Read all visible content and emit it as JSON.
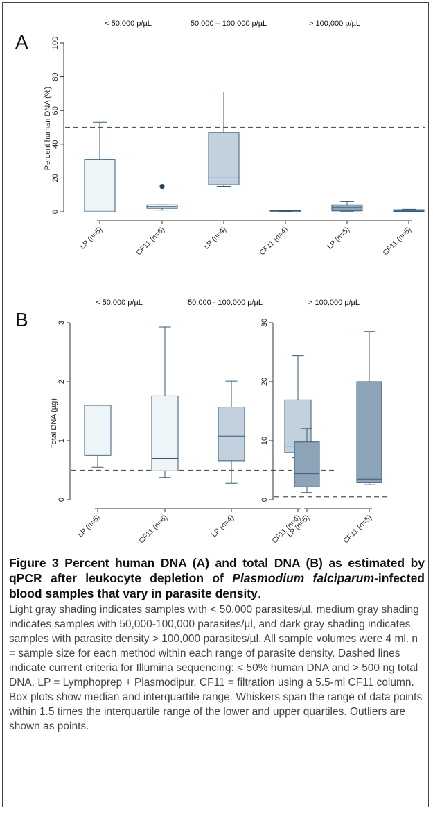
{
  "chart_data": [
    {
      "panel": "A",
      "type": "box",
      "ylabel": "Percent human DNA (%)",
      "ylim": [
        0,
        100
      ],
      "yticks": [
        "0",
        "20",
        "40",
        "60",
        "80",
        "100"
      ],
      "threshold": 50,
      "groups": [
        "< 50,000 p/µL",
        "50,000 – 100,000 p/µL",
        "> 100,000 p/µL"
      ],
      "categories": [
        "LP (n=5)",
        "CF11 (n=6)",
        "LP (n=4)",
        "CF11 (n=4)",
        "LP (n=5)",
        "CF11 (n=5)"
      ],
      "boxes": [
        {
          "min": 0,
          "q1": 0,
          "median": 1,
          "q3": 31,
          "max": 53,
          "shade": "light"
        },
        {
          "min": 1,
          "q1": 2,
          "median": 3,
          "q3": 4,
          "max": 4,
          "outliers": [
            15
          ],
          "shade": "light"
        },
        {
          "min": 15,
          "q1": 16,
          "median": 20,
          "q3": 47,
          "max": 71,
          "shade": "medium"
        },
        {
          "min": 0,
          "q1": 0.3,
          "median": 0.6,
          "q3": 1,
          "max": 1,
          "shade": "medium"
        },
        {
          "min": 0,
          "q1": 0.5,
          "median": 2.5,
          "q3": 4,
          "max": 6,
          "shade": "dark"
        },
        {
          "min": 0,
          "q1": 0.2,
          "median": 0.5,
          "q3": 1.2,
          "max": 1.5,
          "shade": "dark"
        }
      ]
    },
    {
      "panel": "B",
      "type": "box",
      "ylabel": "Total DNA (µg)",
      "groups": [
        "< 50,000 p/µL",
        "50,000 - 100,000 p/µL"
      ],
      "categories": [
        "LP (n=5)",
        "CF11 (n=6)",
        "LP (n=4)",
        "CF11 (n=4)"
      ],
      "ylim": [
        0,
        3
      ],
      "yticks": [
        "0",
        "1",
        "2",
        "3"
      ],
      "threshold": 0.5,
      "boxes": [
        {
          "min": 0.55,
          "q1": 0.75,
          "median": 0.76,
          "q3": 1.6,
          "max": 1.6,
          "shade": "light"
        },
        {
          "min": 0.38,
          "q1": 0.49,
          "median": 0.7,
          "q3": 1.76,
          "max": 2.93,
          "shade": "light"
        },
        {
          "min": 0.28,
          "q1": 0.66,
          "median": 1.08,
          "q3": 1.57,
          "max": 2.01,
          "shade": "medium"
        },
        {
          "min": 0.71,
          "q1": 0.8,
          "median": 0.91,
          "q3": 1.69,
          "max": 2.44,
          "shade": "medium"
        }
      ]
    },
    {
      "panel": "B2",
      "type": "box",
      "groups": [
        "> 100,000 p/µL"
      ],
      "categories": [
        "LP (n=5)",
        "CF11 (n=5)"
      ],
      "ylim": [
        0,
        30
      ],
      "yticks": [
        "0",
        "10",
        "20",
        "30"
      ],
      "threshold": 0.5,
      "boxes": [
        {
          "min": 1.2,
          "q1": 2.2,
          "median": 4.4,
          "q3": 9.8,
          "max": 12.1,
          "shade": "dark"
        },
        {
          "min": 2.6,
          "q1": 2.9,
          "median": 3.5,
          "q3": 20,
          "max": 28.5,
          "shade": "dark"
        }
      ]
    }
  ],
  "colors": {
    "light": "#eef5f8",
    "medium": "#c3d1de",
    "dark": "#8da3b7",
    "stroke": "#355a77",
    "outlier": "#1e4466",
    "dashed": "#555555"
  },
  "caption": {
    "title_a": "Figure 3 Percent human DNA (A) and total DNA (B) as estimated by qPCR after leukocyte depletion of ",
    "title_i": "Plasmodium falciparum",
    "title_b": "-infected blood samples that vary in parasite density",
    "title_end": ".",
    "body": "Light gray shading indicates samples with < 50,000 parasites/µl, medium gray shading indicates samples with 50,000-100,000 parasites/µl, and dark gray shading indicates samples with parasite density > 100,000 parasites/µl. All sample volumes were 4 ml. n = sample size for each method within each range of parasite density. Dashed lines indicate current criteria for Illumina sequencing: < 50% human DNA and > 500 ng total DNA. LP = Lymphoprep + Plasmodipur, CF11 = filtration using a 5.5-ml CF11 column. Box plots show median and interquartile range. Whiskers span the range of data points within 1.5 times the interquartile range of the lower and upper quartiles. Outliers are shown as points."
  }
}
